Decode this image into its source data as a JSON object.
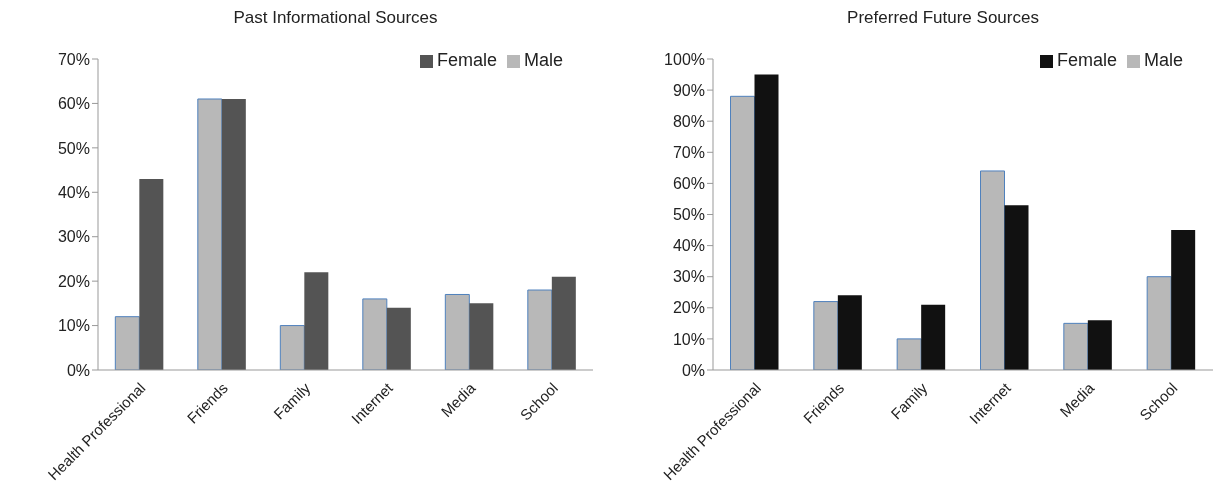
{
  "chart_data": [
    {
      "type": "bar",
      "title": "Past Informational Sources",
      "categories": [
        "Health Professional",
        "Friends",
        "Family",
        "Internet",
        "Media",
        "School"
      ],
      "series": [
        {
          "name": "Male",
          "color": "#b8b8b8",
          "values": [
            12,
            61,
            10,
            16,
            17,
            18
          ]
        },
        {
          "name": "Female",
          "color": "#545454",
          "values": [
            43,
            61,
            22,
            14,
            15,
            21
          ]
        }
      ],
      "ylim": [
        0,
        70
      ],
      "yticks": [
        {
          "value": 0,
          "label": "0%"
        },
        {
          "value": 10,
          "label": "10%"
        },
        {
          "value": 20,
          "label": "20%"
        },
        {
          "value": 30,
          "label": "30%"
        },
        {
          "value": 40,
          "label": "40%"
        },
        {
          "value": 50,
          "label": "50%"
        },
        {
          "value": 60,
          "label": "60%"
        },
        {
          "value": 70,
          "label": "70%"
        }
      ],
      "grid": false,
      "legend": "top right"
    },
    {
      "type": "bar",
      "title": "Preferred Future Sources",
      "categories": [
        "Health Professional",
        "Friends",
        "Family",
        "Internet",
        "Media",
        "School"
      ],
      "series": [
        {
          "name": "Male",
          "color": "#b8b8b8",
          "values": [
            88,
            22,
            10,
            64,
            15,
            30
          ]
        },
        {
          "name": "Female",
          "color": "#111111",
          "values": [
            95,
            24,
            21,
            53,
            16,
            45
          ]
        }
      ],
      "ylim": [
        0,
        100
      ],
      "yticks": [
        {
          "value": 0,
          "label": "0%"
        },
        {
          "value": 10,
          "label": "10%"
        },
        {
          "value": 20,
          "label": "20%"
        },
        {
          "value": 30,
          "label": "30%"
        },
        {
          "value": 40,
          "label": "40%"
        },
        {
          "value": 50,
          "label": "50%"
        },
        {
          "value": 60,
          "label": "60%"
        },
        {
          "value": 70,
          "label": "70%"
        },
        {
          "value": 80,
          "label": "80%"
        },
        {
          "value": 90,
          "label": "90%"
        },
        {
          "value": 100,
          "label": "100%"
        }
      ],
      "grid": false,
      "legend": "top right"
    }
  ]
}
